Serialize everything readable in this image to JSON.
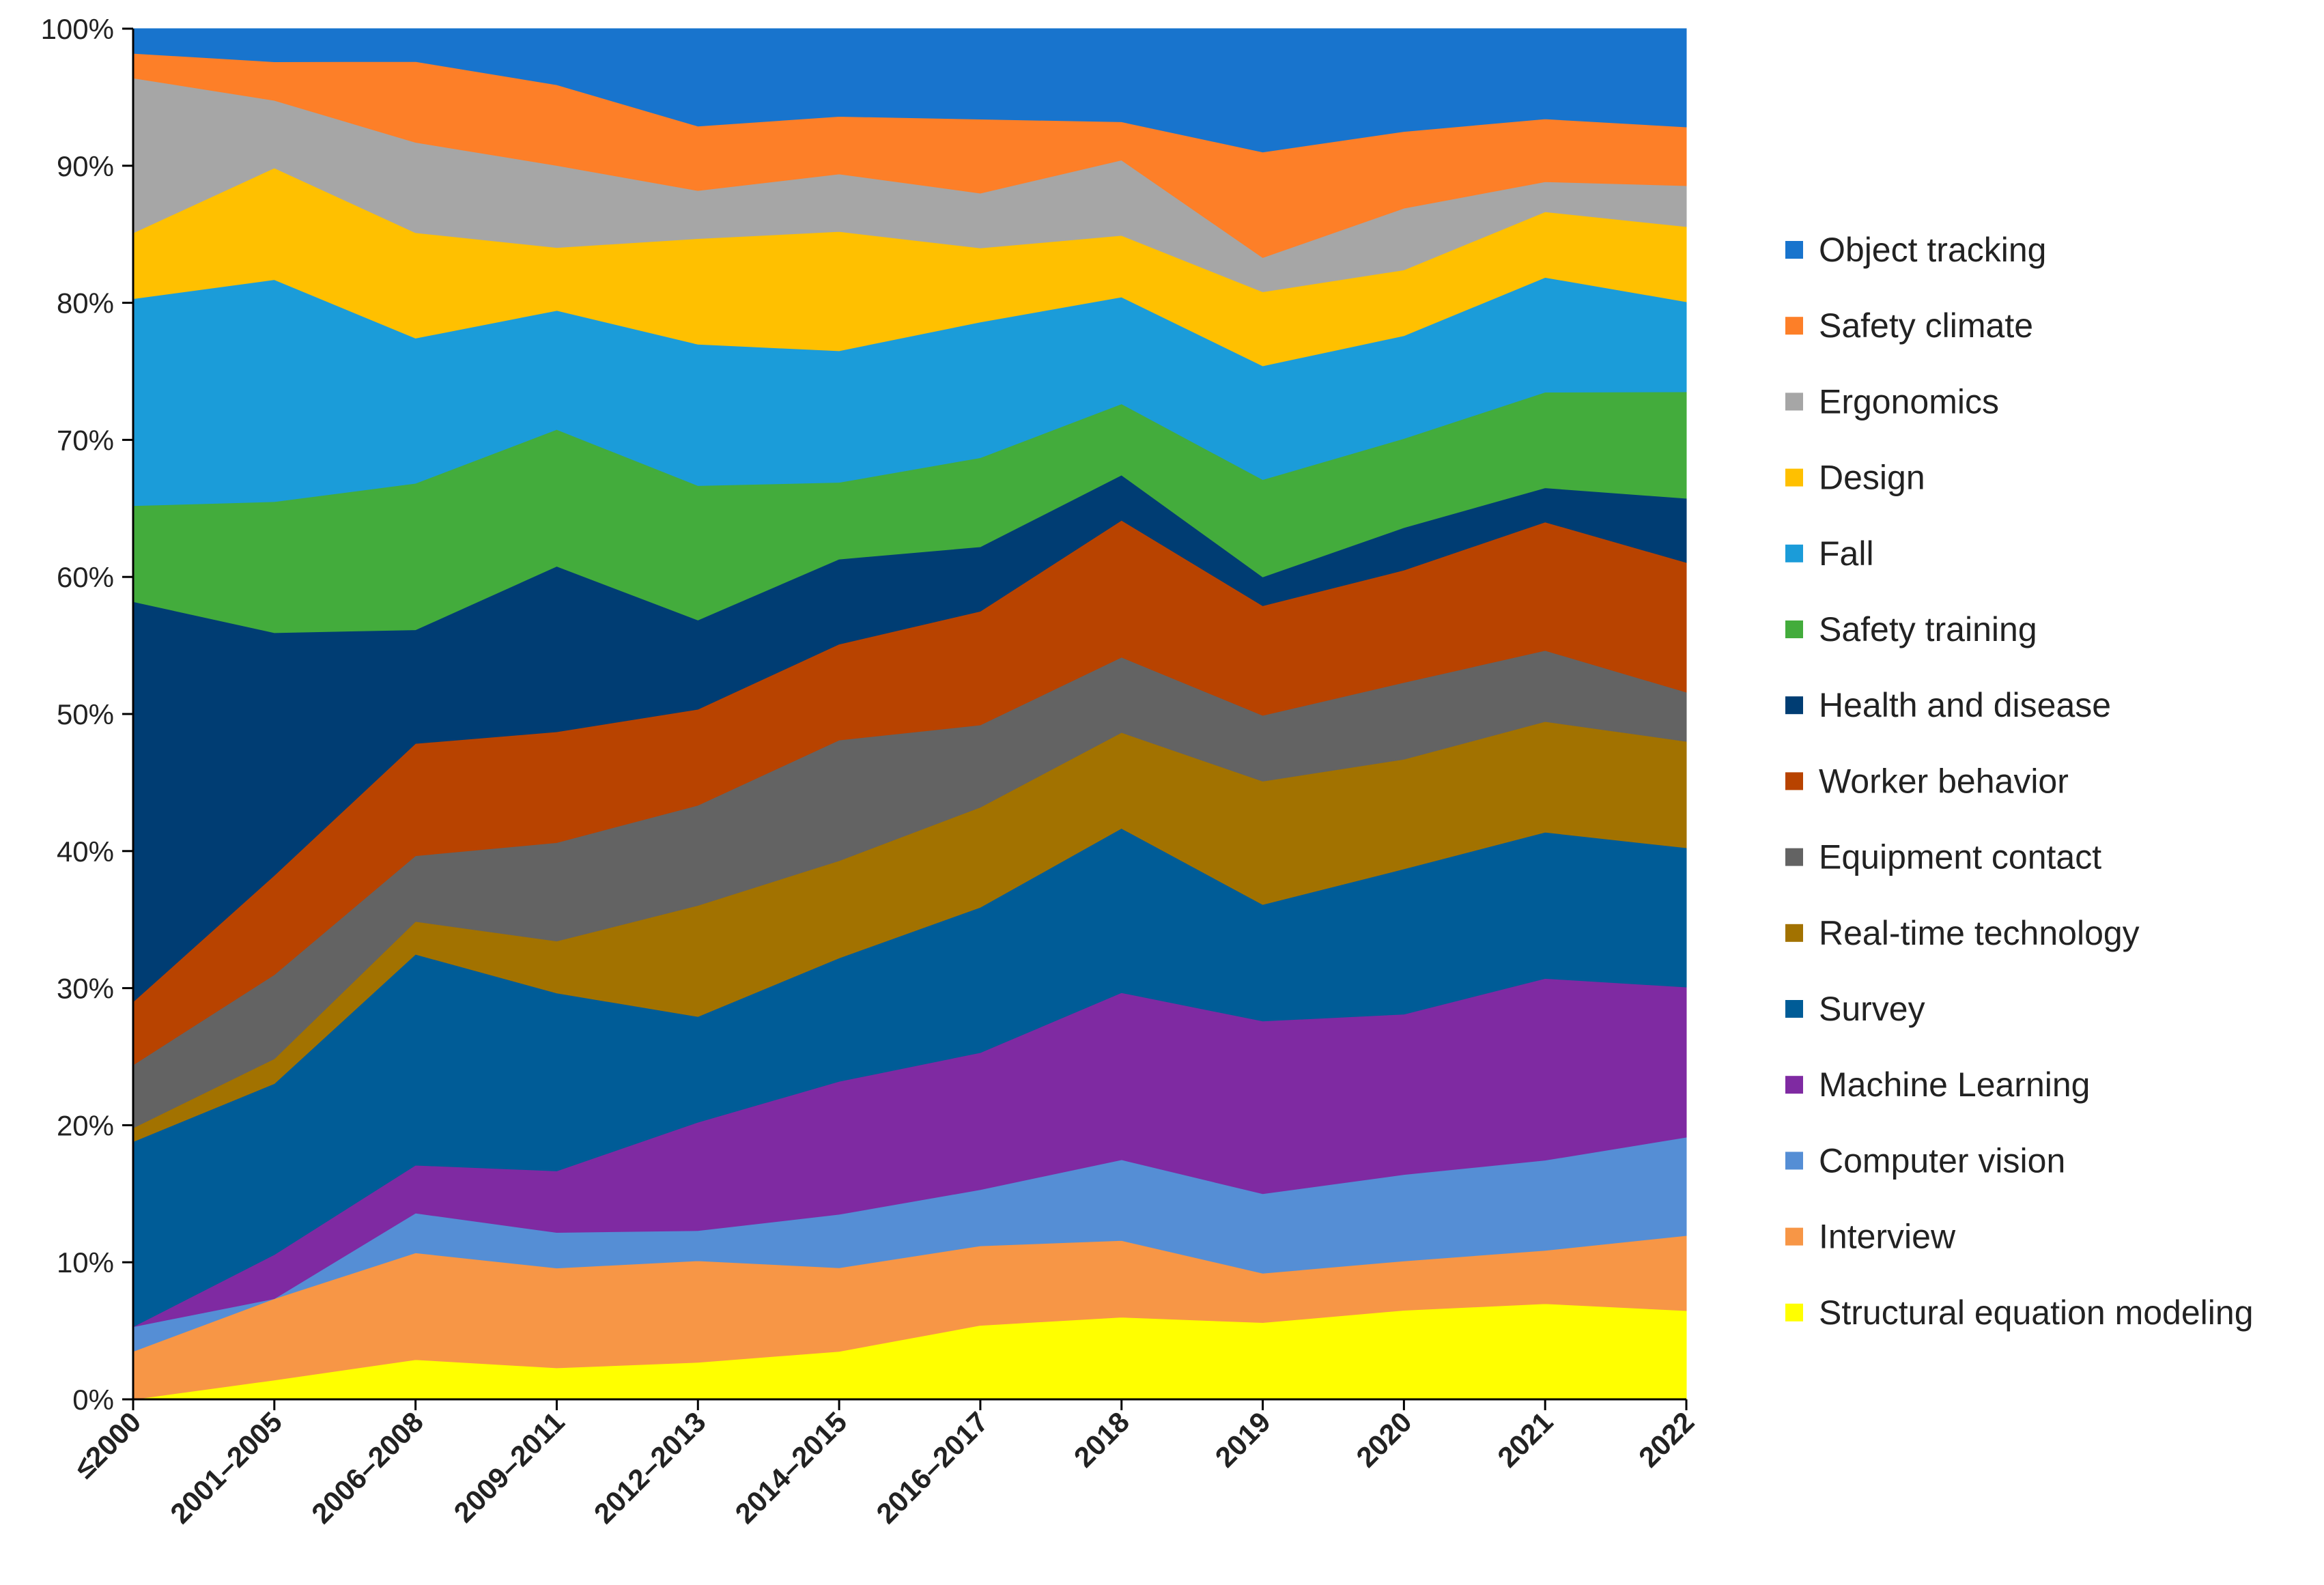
{
  "chart_data": {
    "type": "area",
    "stacked": true,
    "normalized": true,
    "title": "",
    "xlabel": "",
    "ylabel": "",
    "ylim": [
      0,
      100
    ],
    "y_ticks": [
      "0%",
      "10%",
      "20%",
      "30%",
      "40%",
      "50%",
      "60%",
      "70%",
      "80%",
      "90%",
      "100%"
    ],
    "grid": false,
    "legend_position": "right",
    "categories": [
      "≤2000",
      "2001–2005",
      "2006–2008",
      "2009–2011",
      "2012–2013",
      "2014–2015",
      "2016–2017",
      "2018",
      "2019",
      "2020",
      "2021",
      "2022"
    ],
    "series": [
      {
        "name": "Structural equation modeling",
        "color": "#FFFF00",
        "values": [
          0,
          1.4,
          2.9,
          2.3,
          2.7,
          3.5,
          5.4,
          6.0,
          5.6,
          6.5,
          7.0,
          6.5
        ]
      },
      {
        "name": "Interview",
        "color": "#F79646",
        "values": [
          3.5,
          5.9,
          7.8,
          7.3,
          7.4,
          6.1,
          5.8,
          5.6,
          3.6,
          3.6,
          3.9,
          5.5
        ]
      },
      {
        "name": "Computer vision",
        "color": "#558ED5",
        "values": [
          1.8,
          0,
          2.9,
          2.6,
          2.2,
          3.9,
          4.1,
          5.9,
          5.8,
          6.3,
          6.6,
          7.2
        ]
      },
      {
        "name": "Machine Learning",
        "color": "#7F2AA2",
        "values": [
          0,
          3.2,
          3.5,
          4.5,
          7.9,
          9.7,
          10.0,
          12.2,
          12.6,
          11.7,
          13.3,
          11.0
        ]
      },
      {
        "name": "Survey",
        "color": "#005C97",
        "values": [
          13.5,
          12.4,
          15.4,
          13.0,
          7.7,
          9.0,
          10.6,
          12.0,
          8.5,
          10.6,
          10.7,
          10.2
        ]
      },
      {
        "name": "Real-time technology",
        "color": "#A27200",
        "values": [
          1.0,
          1.8,
          2.4,
          3.8,
          8.1,
          7.1,
          7.3,
          7.0,
          9.0,
          8.0,
          8.1,
          7.8
        ]
      },
      {
        "name": "Equipment contact",
        "color": "#636363",
        "values": [
          4.6,
          6.1,
          4.8,
          7.2,
          7.3,
          8.8,
          6.0,
          5.5,
          4.8,
          5.6,
          5.2,
          3.6
        ]
      },
      {
        "name": "Worker behavior",
        "color": "#B84300",
        "values": [
          4.6,
          7.2,
          8.2,
          8.1,
          7.0,
          7.0,
          8.3,
          10.0,
          8.0,
          8.2,
          9.4,
          9.5
        ]
      },
      {
        "name": "Health and disease",
        "color": "#003D73",
        "values": [
          29.2,
          17.6,
          8.3,
          12.1,
          6.5,
          6.2,
          4.7,
          3.3,
          2.1,
          3.1,
          2.5,
          4.7
        ]
      },
      {
        "name": "Safety training",
        "color": "#43AC3C",
        "values": [
          7.0,
          9.5,
          10.7,
          10.0,
          9.8,
          5.6,
          6.5,
          5.2,
          7.1,
          6.5,
          7.0,
          7.8
        ]
      },
      {
        "name": "Fall",
        "color": "#1B9CD9",
        "values": [
          15.1,
          16.1,
          10.6,
          8.7,
          10.3,
          9.6,
          9.9,
          7.8,
          8.3,
          7.5,
          8.4,
          6.6
        ]
      },
      {
        "name": "Design",
        "color": "#FFC000",
        "values": [
          4.8,
          8.1,
          7.7,
          4.6,
          7.7,
          8.7,
          5.4,
          4.5,
          5.4,
          4.8,
          4.8,
          5.5
        ]
      },
      {
        "name": "Ergonomics",
        "color": "#A6A6A6",
        "values": [
          11.3,
          4.9,
          6.6,
          6.0,
          3.5,
          4.2,
          4.0,
          5.5,
          2.5,
          4.5,
          2.2,
          3.0
        ]
      },
      {
        "name": "Safety climate",
        "color": "#FD7F28",
        "values": [
          1.8,
          2.8,
          5.9,
          5.9,
          4.7,
          4.2,
          5.4,
          2.8,
          7.7,
          5.6,
          4.6,
          4.3
        ]
      },
      {
        "name": "Object tracking",
        "color": "#1874CD",
        "values": [
          1.8,
          2.4,
          2.4,
          4.1,
          7.1,
          6.4,
          6.6,
          6.8,
          9.0,
          7.5,
          6.6,
          7.2
        ]
      }
    ]
  }
}
